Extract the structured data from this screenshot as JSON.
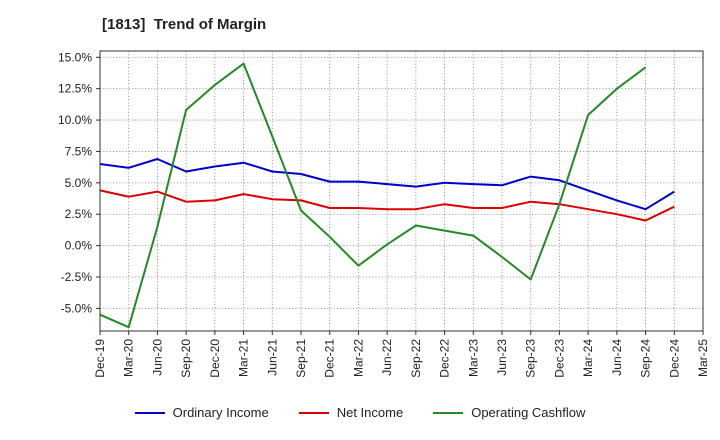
{
  "chart_data": {
    "type": "line",
    "title": "[1813]  Trend of Margin",
    "x": [
      "Dec-19",
      "Mar-20",
      "Jun-20",
      "Sep-20",
      "Dec-20",
      "Mar-21",
      "Jun-21",
      "Sep-21",
      "Dec-21",
      "Mar-22",
      "Jun-22",
      "Sep-22",
      "Dec-22",
      "Mar-23",
      "Jun-23",
      "Sep-23",
      "Dec-23",
      "Mar-24",
      "Jun-24",
      "Sep-24",
      "Dec-24",
      "Mar-25"
    ],
    "yticks": [
      "15.0%",
      "12.5%",
      "10.0%",
      "7.5%",
      "5.0%",
      "2.5%",
      "0.0%",
      "-2.5%",
      "-5.0%"
    ],
    "ylim": [
      -6.8,
      15.5
    ],
    "grid": true,
    "legend_position": "bottom",
    "series": [
      {
        "name": "Ordinary Income",
        "color": "#0000cc",
        "values": [
          6.5,
          6.2,
          6.9,
          5.9,
          6.3,
          6.6,
          5.9,
          5.7,
          5.1,
          5.1,
          4.9,
          4.7,
          5.0,
          4.9,
          4.8,
          5.5,
          5.2,
          4.4,
          3.6,
          2.9,
          4.3,
          null
        ]
      },
      {
        "name": "Net Income",
        "color": "#dd0000",
        "values": [
          4.4,
          3.9,
          4.3,
          3.5,
          3.6,
          4.1,
          3.7,
          3.6,
          3.0,
          3.0,
          2.9,
          2.9,
          3.3,
          3.0,
          3.0,
          3.5,
          3.3,
          2.9,
          2.5,
          2.0,
          3.1,
          null
        ]
      },
      {
        "name": "Operating Cashflow",
        "color": "#228b22",
        "values": [
          -5.5,
          -6.5,
          1.5,
          10.8,
          12.8,
          14.5,
          8.7,
          2.8,
          0.7,
          -1.6,
          0.1,
          1.6,
          1.2,
          0.8,
          -0.9,
          -2.7,
          3.3,
          10.4,
          12.5,
          14.2,
          null,
          null
        ]
      }
    ]
  }
}
